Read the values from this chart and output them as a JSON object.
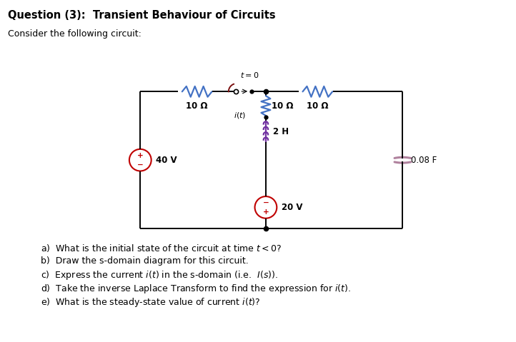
{
  "title": "Question (3):  Transient Behaviour of Circuits",
  "subtitle": "Consider the following circuit:",
  "questions": [
    "a)  What is the initial state of the circuit at time $t < 0$?",
    "b)  Draw the s-domain diagram for this circuit.",
    "c)  Express the current $i(t)$ in the s-domain (i.e.  $I(s)$).",
    "d)  Take the inverse Laplace Transform to find the expression for $i(t)$.",
    "e)  What is the steady-state value of current $i(t)$?"
  ],
  "bg_color": "#ffffff",
  "resistor_color_blue": "#4472c4",
  "inductor_color": "#7030a0",
  "source_color": "#c00000",
  "capacitor_color": "#b0829e",
  "switch_color": "#7b1010",
  "title_fontsize": 10.5,
  "label_fontsize": 8.5,
  "question_fontsize": 9
}
